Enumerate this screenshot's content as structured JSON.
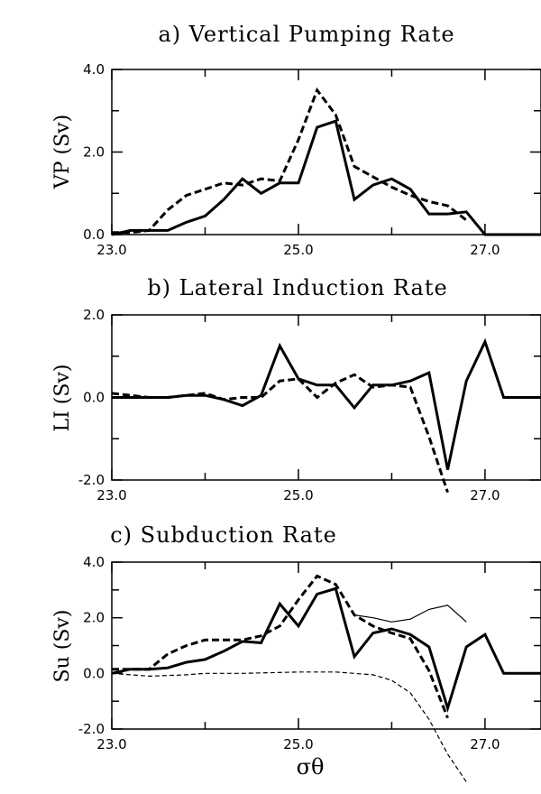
{
  "chart_data": [
    {
      "type": "line",
      "title": "a) Vertical Pumping Rate",
      "ylabel": "VP (Sv)",
      "xlabel": "",
      "xlim": [
        23.0,
        27.6
      ],
      "ylim": [
        0.0,
        4.0
      ],
      "xticks": [
        23.0,
        25.0,
        27.0
      ],
      "xtick_labels": [
        "23.0",
        "25.0",
        "27.0"
      ],
      "yticks": [
        0.0,
        2.0,
        4.0
      ],
      "ytick_labels": [
        "0.0",
        "2.0",
        "4.0"
      ],
      "series": [
        {
          "style": "solid-thick",
          "x": [
            23.0,
            23.2,
            23.4,
            23.6,
            23.8,
            24.0,
            24.2,
            24.4,
            24.6,
            24.8,
            25.0,
            25.2,
            25.4,
            25.6,
            25.8,
            26.0,
            26.2,
            26.4,
            26.6,
            26.8,
            27.0,
            27.2,
            27.6
          ],
          "y": [
            0.0,
            0.1,
            0.1,
            0.1,
            0.3,
            0.45,
            0.85,
            1.35,
            1.0,
            1.25,
            1.25,
            2.6,
            2.75,
            0.85,
            1.2,
            1.35,
            1.1,
            0.5,
            0.5,
            0.55,
            0.0,
            0.0,
            0.0
          ]
        },
        {
          "style": "dashed-thick",
          "x": [
            23.0,
            23.2,
            23.4,
            23.6,
            23.8,
            24.0,
            24.2,
            24.4,
            24.6,
            24.8,
            25.0,
            25.2,
            25.4,
            25.6,
            25.8,
            26.0,
            26.2,
            26.4,
            26.6,
            26.8
          ],
          "y": [
            0.05,
            0.05,
            0.1,
            0.6,
            0.95,
            1.1,
            1.25,
            1.2,
            1.35,
            1.3,
            2.3,
            3.5,
            2.9,
            1.65,
            1.4,
            1.15,
            0.95,
            0.8,
            0.7,
            0.35
          ]
        }
      ]
    },
    {
      "type": "line",
      "title": "b) Lateral Induction Rate",
      "ylabel": "LI (Sv)",
      "xlabel": "",
      "xlim": [
        23.0,
        27.6
      ],
      "ylim": [
        -2.0,
        2.0
      ],
      "xticks": [
        23.0,
        25.0,
        27.0
      ],
      "xtick_labels": [
        "23.0",
        "25.0",
        "27.0"
      ],
      "yticks": [
        -2.0,
        0.0,
        2.0
      ],
      "ytick_labels": [
        "-2.0",
        "0.0",
        "2.0"
      ],
      "series": [
        {
          "style": "solid-thick",
          "x": [
            23.0,
            23.2,
            23.4,
            23.6,
            23.8,
            24.0,
            24.2,
            24.4,
            24.6,
            24.8,
            25.0,
            25.2,
            25.4,
            25.6,
            25.8,
            26.0,
            26.2,
            26.4,
            26.6,
            26.8,
            27.0,
            27.2,
            27.6
          ],
          "y": [
            0.0,
            0.0,
            0.0,
            0.0,
            0.05,
            0.05,
            -0.05,
            -0.2,
            0.05,
            1.25,
            0.45,
            0.3,
            0.3,
            -0.25,
            0.3,
            0.3,
            0.4,
            0.6,
            -1.75,
            0.4,
            1.35,
            0.0,
            0.0
          ]
        },
        {
          "style": "dashed-thick",
          "x": [
            23.0,
            23.2,
            23.4,
            23.6,
            23.8,
            24.0,
            24.2,
            24.4,
            24.6,
            24.8,
            25.0,
            25.2,
            25.4,
            25.6,
            25.8,
            26.0,
            26.2,
            26.4,
            26.6
          ],
          "y": [
            0.1,
            0.05,
            0.0,
            0.0,
            0.05,
            0.1,
            -0.05,
            0.0,
            0.0,
            0.4,
            0.45,
            0.0,
            0.35,
            0.55,
            0.25,
            0.3,
            0.25,
            -0.95,
            -2.3
          ]
        }
      ]
    },
    {
      "type": "line",
      "title": "c) Subduction Rate",
      "ylabel": "Su (Sv)",
      "xlabel": "σθ",
      "xlim": [
        23.0,
        27.6
      ],
      "ylim": [
        -2.0,
        4.0
      ],
      "xticks": [
        23.0,
        25.0,
        27.0
      ],
      "xtick_labels": [
        "23.0",
        "25.0",
        "27.0"
      ],
      "yticks": [
        -2.0,
        0.0,
        2.0,
        4.0
      ],
      "ytick_labels": [
        "-2.0",
        "0.0",
        "2.0",
        "4.0"
      ],
      "series": [
        {
          "style": "solid-thick",
          "x": [
            23.0,
            23.2,
            23.4,
            23.6,
            23.8,
            24.0,
            24.2,
            24.4,
            24.6,
            24.8,
            25.0,
            25.2,
            25.4,
            25.6,
            25.8,
            26.0,
            26.2,
            26.4,
            26.6,
            26.8,
            27.0,
            27.2,
            27.6
          ],
          "y": [
            0.0,
            0.15,
            0.15,
            0.2,
            0.4,
            0.5,
            0.8,
            1.15,
            1.1,
            2.5,
            1.7,
            2.85,
            3.05,
            0.6,
            1.45,
            1.6,
            1.4,
            0.95,
            -1.25,
            0.95,
            1.4,
            0.0,
            0.0
          ]
        },
        {
          "style": "dashed-thick",
          "x": [
            23.0,
            23.2,
            23.4,
            23.6,
            23.8,
            24.0,
            24.2,
            24.4,
            24.6,
            24.8,
            25.0,
            25.2,
            25.4,
            25.6,
            25.8,
            26.0,
            26.2,
            26.4,
            26.6
          ],
          "y": [
            0.15,
            0.15,
            0.15,
            0.7,
            1.0,
            1.2,
            1.2,
            1.2,
            1.35,
            1.7,
            2.65,
            3.5,
            3.2,
            2.1,
            1.7,
            1.45,
            1.25,
            0.1,
            -1.6
          ]
        },
        {
          "style": "solid-thin",
          "x": [
            25.6,
            25.8,
            26.0,
            26.2,
            26.4,
            26.6,
            26.8
          ],
          "y": [
            2.1,
            2.0,
            1.85,
            1.95,
            2.3,
            2.45,
            1.85
          ]
        },
        {
          "style": "dashed-thin",
          "x": [
            23.0,
            23.4,
            23.8,
            24.0,
            24.4,
            25.0,
            25.4,
            25.8,
            26.0,
            26.2,
            26.4,
            26.6,
            26.8
          ],
          "y": [
            0.0,
            -0.1,
            -0.05,
            0.0,
            0.0,
            0.05,
            0.05,
            -0.05,
            -0.25,
            -0.7,
            -1.65,
            -2.9,
            -3.9
          ]
        }
      ]
    }
  ]
}
